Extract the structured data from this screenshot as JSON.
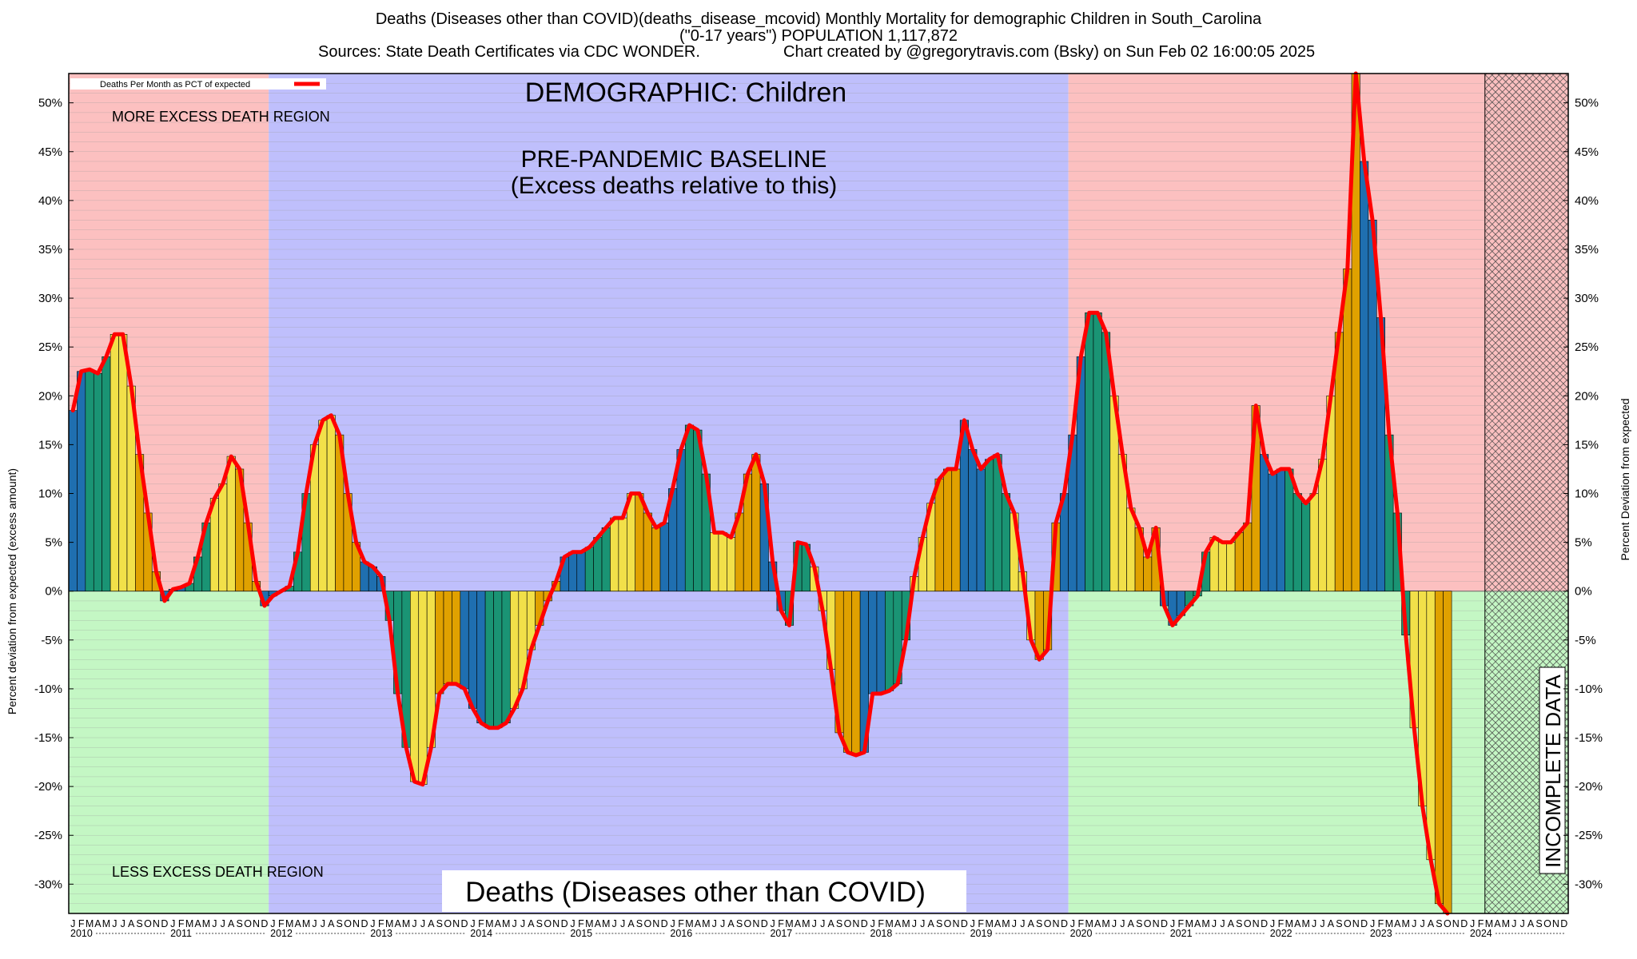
{
  "header": {
    "line1": "Deaths (Diseases other than COVID)(deaths_disease_mcovid) Monthly Mortality for demographic Children in South_Carolina",
    "line2": "(\"0-17 years\") POPULATION 1,117,872",
    "line3_left": "Sources: State Death Certificates via CDC WONDER.",
    "line3_right": "Chart created by @gregorytravis.com (Bsky) on Sun Feb 02 16:00:05 2025"
  },
  "labels": {
    "demographic": "DEMOGRAPHIC: Children",
    "baseline_line1": "PRE-PANDEMIC BASELINE",
    "baseline_line2": "(Excess deaths relative to this)",
    "more_excess": "MORE EXCESS DEATH REGION",
    "less_excess": "LESS EXCESS DEATH REGION",
    "bottom_title": "Deaths (Diseases other than COVID)",
    "incomplete": "INCOMPLETE DATA",
    "legend": "Deaths Per Month as PCT of expected"
  },
  "chart_data": {
    "type": "bar",
    "ylabel_left": "Percent deviation from expected (excess amount)",
    "ylabel_right": "Percent Deviation from expected",
    "ylim": [
      -33,
      53
    ],
    "yticks": [
      "50%",
      "45%",
      "40%",
      "35%",
      "30%",
      "25%",
      "20%",
      "15%",
      "10%",
      "5%",
      "0%",
      "-5%",
      "-10%",
      "-15%",
      "-20%",
      "-25%",
      "-30%"
    ],
    "ytick_values": [
      50,
      45,
      40,
      35,
      30,
      25,
      20,
      15,
      10,
      5,
      0,
      -5,
      -10,
      -15,
      -20,
      -25,
      -30
    ],
    "years": [
      "2010",
      "2011",
      "2012",
      "2013",
      "2014",
      "2015",
      "2016",
      "2017",
      "2018",
      "2019",
      "2020",
      "2021",
      "2022",
      "2023",
      "2024"
    ],
    "month_letters": [
      "J",
      "F",
      "M",
      "A",
      "M",
      "J",
      "J",
      "A",
      "S",
      "O",
      "N",
      "D"
    ],
    "start": "2010-01",
    "baseline_period": [
      "2012-01",
      "2019-12"
    ],
    "incomplete_from": "2024-03",
    "season_colors": {
      "winter": "#1f6fb0",
      "spring": "#1a9474",
      "summer": "#f2e049",
      "fall": "#e0a100"
    },
    "region_colors": {
      "excess": "#fcc0c0",
      "deficit": "#c4f7c4",
      "baseline": "#bfbffc"
    },
    "line_color": "#ff0000",
    "values": [
      18.5,
      22.5,
      22.7,
      22.3,
      24.0,
      26.3,
      26.3,
      21.0,
      14.0,
      8.0,
      2.0,
      -1.0,
      0.2,
      0.4,
      0.8,
      3.5,
      7.0,
      9.5,
      11.0,
      13.8,
      12.5,
      7.0,
      1.0,
      -1.5,
      -0.5,
      0.0,
      0.5,
      4.0,
      10.0,
      15.0,
      17.5,
      18.0,
      16.0,
      10.0,
      5.0,
      3.0,
      2.5,
      1.5,
      -3.0,
      -10.5,
      -16.0,
      -19.5,
      -19.8,
      -16.0,
      -10.5,
      -9.5,
      -9.5,
      -10.0,
      -12.0,
      -13.5,
      -14.0,
      -14.0,
      -13.5,
      -12.0,
      -10.0,
      -6.0,
      -3.5,
      -1.0,
      1.0,
      3.5,
      4.0,
      4.0,
      4.5,
      5.5,
      6.5,
      7.5,
      7.5,
      10.0,
      10.0,
      8.0,
      6.5,
      7.0,
      10.5,
      14.5,
      17.0,
      16.5,
      12.0,
      6.0,
      6.0,
      5.5,
      8.0,
      12.0,
      14.0,
      11.0,
      3.0,
      -2.0,
      -3.5,
      5.0,
      4.8,
      2.5,
      -2.0,
      -8.0,
      -14.5,
      -16.5,
      -16.8,
      -16.5,
      -10.5,
      -10.5,
      -10.2,
      -9.5,
      -5.0,
      1.5,
      5.5,
      9.0,
      11.5,
      12.5,
      12.5,
      17.5,
      14.5,
      12.5,
      13.5,
      14.0,
      10.0,
      8.0,
      2.0,
      -5.0,
      -7.0,
      -6.0,
      7.0,
      10.0,
      16.0,
      24.0,
      28.5,
      28.5,
      26.5,
      20.0,
      14.0,
      8.5,
      6.5,
      3.5,
      6.5,
      -1.5,
      -3.5,
      -2.5,
      -1.5,
      -0.5,
      4.0,
      5.5,
      5.0,
      5.0,
      6.0,
      7.0,
      19.0,
      14.0,
      12.0,
      12.5,
      12.5,
      10.0,
      9.0,
      10.0,
      13.5,
      20.0,
      26.5,
      33.0,
      53.0,
      44.0,
      38.0,
      28.0,
      16.0,
      8.0,
      -4.5,
      -14.0,
      -22.0,
      -27.5,
      -32.0,
      -33.0
    ]
  }
}
